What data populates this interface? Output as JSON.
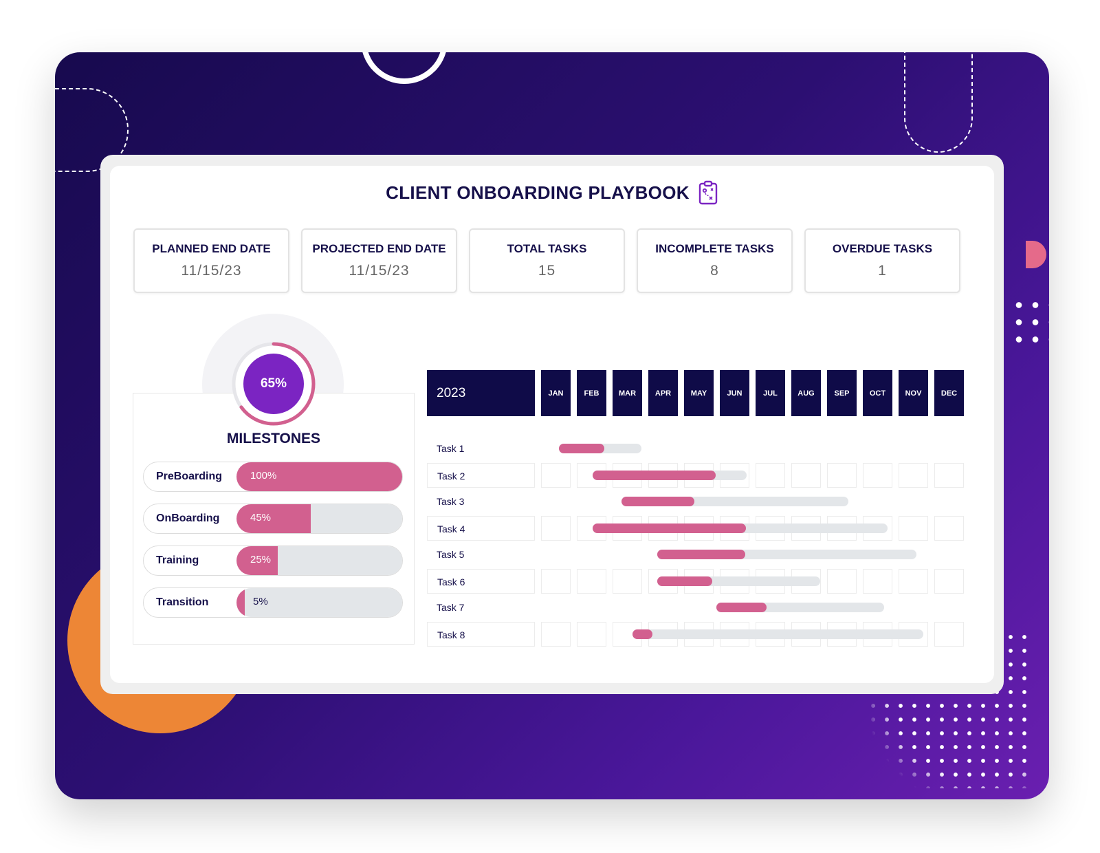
{
  "title": "CLIENT ONBOARDING PLAYBOOK",
  "title_icon": "clipboard-strategy-icon",
  "colors": {
    "accent_pink": "#d2608f",
    "navy": "#0f0b48",
    "purple": "#7b24c2",
    "orange": "#ed8636",
    "track_gray": "#e3e6e9"
  },
  "kpis": [
    {
      "label": "PLANNED END DATE",
      "value": "11/15/23"
    },
    {
      "label": "PROJECTED END DATE",
      "value": "11/15/23"
    },
    {
      "label": "TOTAL TASKS",
      "value": "15"
    },
    {
      "label": "INCOMPLETE TASKS",
      "value": "8"
    },
    {
      "label": "OVERDUE TASKS",
      "value": "1"
    }
  ],
  "milestones": {
    "title": "MILESTONES",
    "overall_label": "65%",
    "overall_progress": 0.65,
    "items": [
      {
        "name": "PreBoarding",
        "label": "100%",
        "progress": 1.0
      },
      {
        "name": "OnBoarding",
        "label": "45%",
        "progress": 0.45
      },
      {
        "name": "Training",
        "label": "25%",
        "progress": 0.25
      },
      {
        "name": "Transition",
        "label": "5%",
        "progress": 0.05
      }
    ]
  },
  "gantt": {
    "year": "2023",
    "months": [
      "JAN",
      "FEB",
      "MAR",
      "APR",
      "MAY",
      "JUN",
      "JUL",
      "AUG",
      "SEP",
      "OCT",
      "NOV",
      "DEC"
    ],
    "tasks": [
      {
        "name": "Task 1",
        "start_month": 0.5,
        "end_month": 2.8,
        "progress": 0.55
      },
      {
        "name": "Task 2",
        "start_month": 1.45,
        "end_month": 5.75,
        "progress": 0.8
      },
      {
        "name": "Task 3",
        "start_month": 2.25,
        "end_month": 8.6,
        "progress": 0.32
      },
      {
        "name": "Task 4",
        "start_month": 1.45,
        "end_month": 9.7,
        "progress": 0.52
      },
      {
        "name": "Task 5",
        "start_month": 3.25,
        "end_month": 10.5,
        "progress": 0.34
      },
      {
        "name": "Task 6",
        "start_month": 3.25,
        "end_month": 7.8,
        "progress": 0.34
      },
      {
        "name": "Task 7",
        "start_month": 4.9,
        "end_month": 9.6,
        "progress": 0.3
      },
      {
        "name": "Task 8",
        "start_month": 2.55,
        "end_month": 10.7,
        "progress": 0.07
      }
    ]
  }
}
